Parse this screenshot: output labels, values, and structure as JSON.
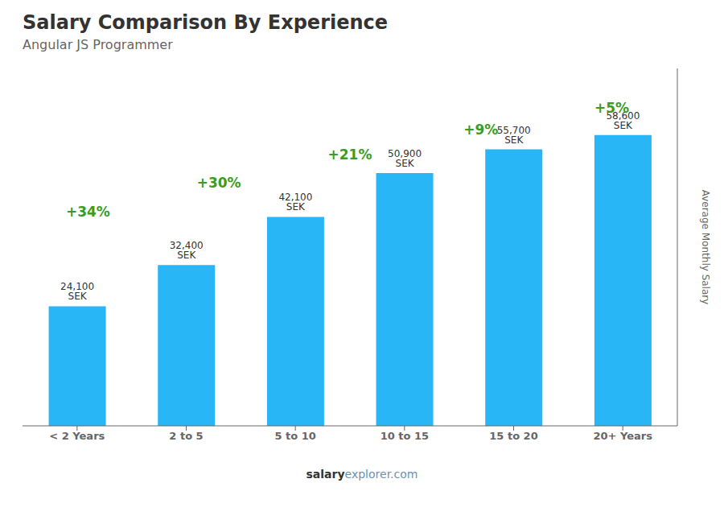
{
  "chart_data": {
    "type": "bar",
    "title": "Salary Comparison By Experience",
    "subtitle": "Angular JS Programmer",
    "ylabel": "Average Monthly Salary",
    "categories": [
      "< 2 Years",
      "2 to 5",
      "5 to 10",
      "10 to 15",
      "15 to 20",
      "20+ Years"
    ],
    "values": [
      24100,
      32400,
      42100,
      50900,
      55700,
      58600
    ],
    "value_labels": [
      "24,100 SEK",
      "32,400 SEK",
      "42,100 SEK",
      "50,900 SEK",
      "55,700 SEK",
      "58,600 SEK"
    ],
    "data_labels": true,
    "color": "#29b6f6",
    "ylim": [
      0,
      72000
    ],
    "tick_labels": "x",
    "grid": false,
    "annotations": [
      {
        "from": "< 2 Years",
        "to": "2 to 5",
        "text": "+34%",
        "color": "#3a9d23"
      },
      {
        "from": "2 to 5",
        "to": "5 to 10",
        "text": "+30%",
        "color": "#3a9d23"
      },
      {
        "from": "5 to 10",
        "to": "10 to 15",
        "text": "+21%",
        "color": "#3a9d23"
      },
      {
        "from": "10 to 15",
        "to": "15 to 20",
        "text": "+9%",
        "color": "#3a9d23"
      },
      {
        "from": "15 to 20",
        "to": "20+ Years",
        "text": "+5%",
        "color": "#3a9d23"
      }
    ],
    "footer": [
      "salary",
      "explorer.com"
    ]
  }
}
